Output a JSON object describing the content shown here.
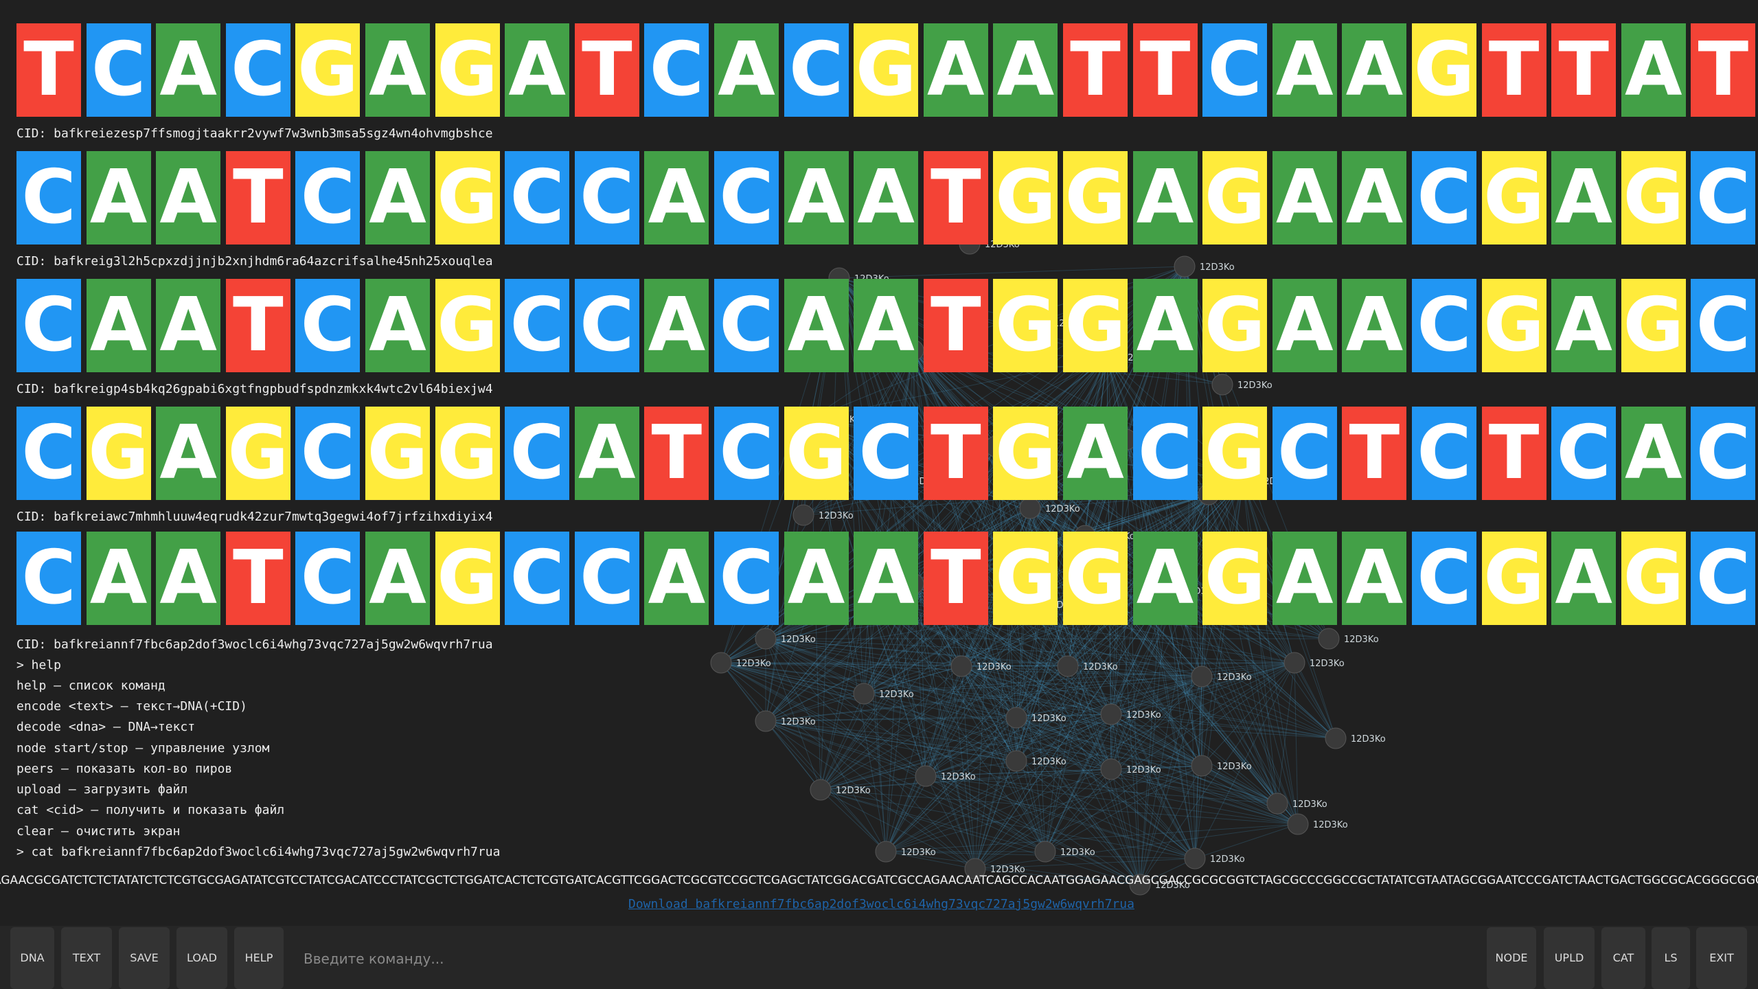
{
  "colors": {
    "A": "#43a047",
    "C": "#2196f3",
    "G": "#ffeb3b",
    "T": "#f44336",
    "background": "#202020",
    "edge": "#4aa3d8"
  },
  "sequences": [
    {
      "letters": "TCACGAGATCACGAATTCAAGTTAT",
      "cid": "CID: bafkreiezesp7ffsmogjtaakrr2vywf7w3wnb3msa5sgz4wn4ohvmgbshce"
    },
    {
      "letters": "CAATCAGCCACAATGGAGAACGAGC",
      "cid": "CID: bafkreig3l2h5cpxzdjjnjb2xnjhdm6ra64azcrifsalhe45nh25xouqlea"
    },
    {
      "letters": "CAATCAGCCACAATGGAGAACGAGC",
      "cid": "CID: bafkreigp4sb4kq26gpabi6xgtfngpbudfspdnzmkxk4wtc2vl64biexjw4"
    },
    {
      "letters": "CGAGCGGCATCGCTGACGCTCTCAC",
      "cid": "CID: bafkreiawc7mhmhluuw4eqrudk42zur7mwtq3gegwi4of7jrfzihxdiyix4"
    },
    {
      "letters": "CAATCAGCCACAATGGAGAACGAGC",
      "cid": "CID: bafkreiannf7fbc6ap2dof3woclc6i4whg73vqc727aj5gw2w6wqvrh7rua"
    }
  ],
  "terminal": {
    "lines": [
      "> help",
      "help — список команд",
      "encode <text> — текст→DNA(+CID)",
      "decode <dna> — DNA→текст",
      "node start/stop — управление узлом",
      "peers — показать кол-во пиров",
      "upload — загрузить файл",
      "cat <cid> — получить и показать файл",
      "clear — очистить экран",
      "> cat bafkreiannf7fbc6ap2dof3woclc6i4whg73vqc727aj5gw2w6wqvrh7rua"
    ],
    "long_sequence": "AGAACGCGATCTCTCTATATCTCTCGTGCGAGATATCGTCCTATCGACATCCCTATCGCTCTGGATCACTCTCGTGATCACGTTCGGACTCGCGTCCGCTCGAGCTATCGGACGATCGCCAGAACAATCAGCCACAATGGAGAACGAGCGACCGCGCGGTCTAGCGCCCGGCCGCTATATCGTAATAGCGGAATCCCGATCTAACTGACTGGCGCACGGGCGGGCGTGCGGGCGAGATAG",
    "download_link": "Download bafkreiannf7fbc6ap2dof3woclc6i4whg73vqc727aj5gw2w6wqvrh7rua"
  },
  "network": {
    "node_label": "12D3Ko"
  },
  "toolbar": {
    "left_buttons": [
      "DNA",
      "TEXT",
      "SAVE",
      "LOAD",
      "HELP"
    ],
    "right_buttons": [
      "NODE",
      "UPLD",
      "CAT",
      "LS",
      "EXIT"
    ],
    "input_placeholder": "Введите команду..."
  }
}
